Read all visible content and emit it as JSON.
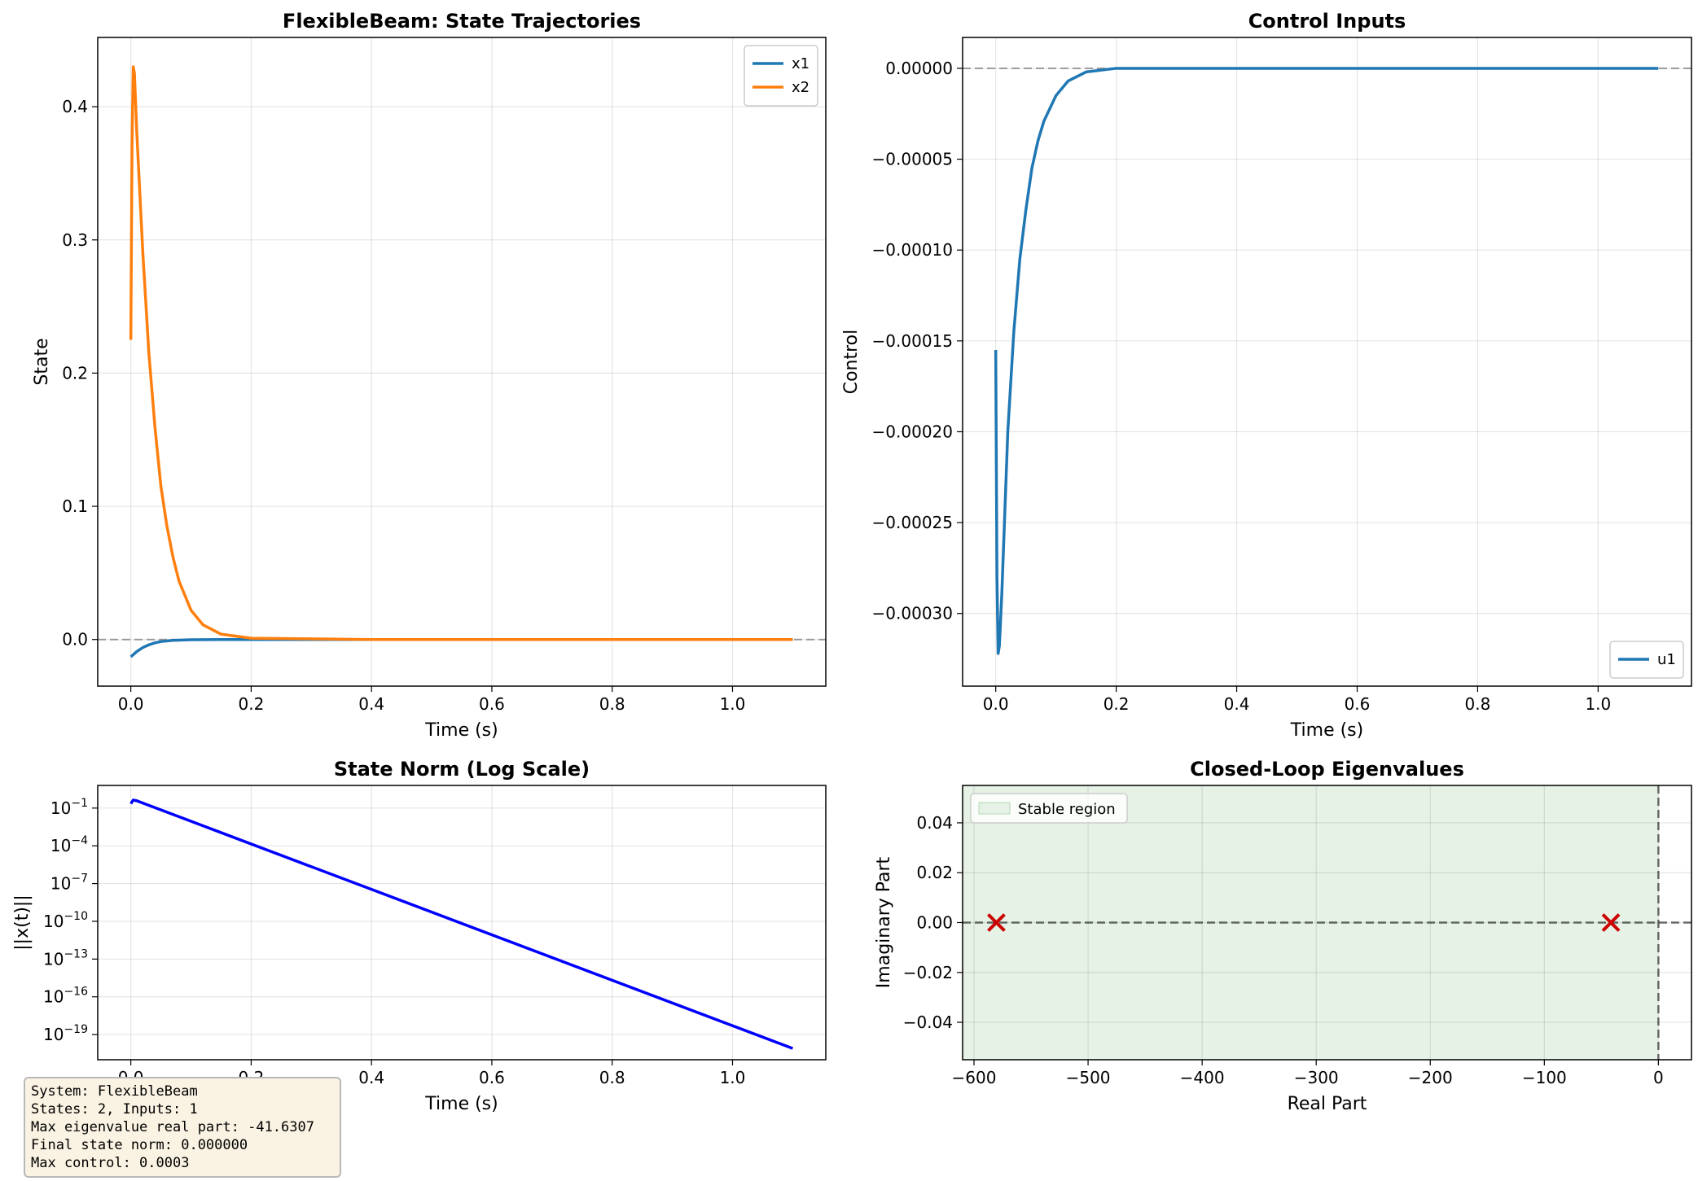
{
  "chart_data": [
    {
      "type": "line",
      "title": "FlexibleBeam: State Trajectories",
      "xlabel": "Time (s)",
      "ylabel": "State",
      "xlim": [
        -0.055,
        1.155
      ],
      "ylim": [
        -0.035,
        0.452
      ],
      "xticks": [
        0.0,
        0.2,
        0.4,
        0.6,
        0.8,
        1.0
      ],
      "xtick_labels": [
        "0.0",
        "0.2",
        "0.4",
        "0.6",
        "0.8",
        "1.0"
      ],
      "yticks": [
        0.0,
        0.1,
        0.2,
        0.3,
        0.4
      ],
      "ytick_labels": [
        "0.0",
        "0.1",
        "0.2",
        "0.3",
        "0.4"
      ],
      "grid": true,
      "legend": "top-right",
      "reference_line_y": 0,
      "series": [
        {
          "name": "x1",
          "color": "#1f77b4",
          "x": [
            0.0,
            0.01,
            0.02,
            0.03,
            0.04,
            0.05,
            0.07,
            0.1,
            0.15,
            0.2,
            0.4,
            0.6,
            0.8,
            1.0,
            1.1
          ],
          "y": [
            -0.013,
            -0.009,
            -0.006,
            -0.004,
            -0.0025,
            -0.0015,
            -0.0006,
            -0.0002,
            0.0,
            0.0,
            0.0,
            0.0,
            0.0,
            0.0,
            0.0
          ]
        },
        {
          "name": "x2",
          "color": "#ff7f0e",
          "x": [
            0.0,
            0.002,
            0.004,
            0.006,
            0.01,
            0.02,
            0.03,
            0.04,
            0.05,
            0.06,
            0.07,
            0.08,
            0.1,
            0.12,
            0.15,
            0.2,
            0.4,
            0.6,
            0.8,
            1.0,
            1.1
          ],
          "y": [
            0.225,
            0.37,
            0.43,
            0.425,
            0.38,
            0.29,
            0.215,
            0.16,
            0.115,
            0.085,
            0.062,
            0.044,
            0.022,
            0.011,
            0.004,
            0.001,
            0.0,
            0.0,
            0.0,
            0.0,
            0.0
          ]
        }
      ]
    },
    {
      "type": "line",
      "title": "Control Inputs",
      "xlabel": "Time (s)",
      "ylabel": "Control",
      "xlim": [
        -0.055,
        1.155
      ],
      "ylim": [
        -0.00034,
        1.7e-05
      ],
      "xticks": [
        0.0,
        0.2,
        0.4,
        0.6,
        0.8,
        1.0
      ],
      "xtick_labels": [
        "0.0",
        "0.2",
        "0.4",
        "0.6",
        "0.8",
        "1.0"
      ],
      "yticks": [
        0.0,
        -5e-05,
        -0.0001,
        -0.00015,
        -0.0002,
        -0.00025,
        -0.0003
      ],
      "ytick_labels": [
        "0.00000",
        "−0.00005",
        "−0.00010",
        "−0.00015",
        "−0.00020",
        "−0.00025",
        "−0.00030"
      ],
      "grid": true,
      "legend": "bottom-right",
      "reference_line_y": 0,
      "series": [
        {
          "name": "u1",
          "color": "#1f77b4",
          "x": [
            0.0,
            0.002,
            0.004,
            0.006,
            0.01,
            0.015,
            0.02,
            0.03,
            0.04,
            0.05,
            0.06,
            0.07,
            0.08,
            0.1,
            0.12,
            0.15,
            0.2,
            0.4,
            0.6,
            0.8,
            1.0,
            1.1
          ],
          "y": [
            -0.000155,
            -0.00028,
            -0.000322,
            -0.000318,
            -0.00029,
            -0.000245,
            -0.0002,
            -0.000145,
            -0.000105,
            -7.8e-05,
            -5.5e-05,
            -4e-05,
            -2.9e-05,
            -1.5e-05,
            -7e-06,
            -2e-06,
            0.0,
            0.0,
            0.0,
            0.0,
            0.0,
            0.0
          ]
        }
      ]
    },
    {
      "type": "line",
      "title": "State Norm (Log Scale)",
      "xlabel": "Time (s)",
      "ylabel": "||x(t)||",
      "log_y": true,
      "xlim": [
        -0.055,
        1.155
      ],
      "ylim_log10": [
        -21,
        0.8
      ],
      "xticks": [
        0.0,
        0.2,
        0.4,
        0.6,
        0.8,
        1.0
      ],
      "xtick_labels": [
        "0.0",
        "0.2",
        "0.4",
        "0.6",
        "0.8",
        "1.0"
      ],
      "ytick_exponents": [
        -1,
        -4,
        -7,
        -10,
        -13,
        -16,
        -19
      ],
      "ytick_base": "10",
      "grid": true,
      "series": [
        {
          "color": "#0000ff",
          "x": [
            0.0,
            0.004,
            0.01,
            1.1
          ],
          "log10_y": [
            -0.65,
            -0.36,
            -0.42,
            -20.1
          ]
        }
      ]
    },
    {
      "type": "scatter",
      "title": "Closed-Loop Eigenvalues",
      "xlabel": "Real Part",
      "ylabel": "Imaginary Part",
      "xlim": [
        -610,
        29
      ],
      "ylim": [
        -0.055,
        0.055
      ],
      "xticks": [
        -600,
        -500,
        -400,
        -300,
        -200,
        -100,
        0
      ],
      "xtick_labels": [
        "−600",
        "−500",
        "−400",
        "−300",
        "−200",
        "−100",
        "0"
      ],
      "yticks": [
        0.04,
        0.02,
        0.0,
        -0.02,
        -0.04
      ],
      "ytick_labels": [
        "0.04",
        "0.02",
        "0.00",
        "−0.02",
        "−0.04"
      ],
      "grid": true,
      "legend": "top-left",
      "stable_region": {
        "label": "Stable region",
        "x_max": 0,
        "color": "#e5f2e5"
      },
      "points": [
        {
          "x": -580.4,
          "y": 0.0,
          "marker": "x",
          "color": "#cc0000"
        },
        {
          "x": -41.6307,
          "y": 0.0,
          "marker": "x",
          "color": "#cc0000"
        }
      ]
    }
  ],
  "info": {
    "lines": [
      "System: FlexibleBeam",
      "States: 2, Inputs: 1",
      "Max eigenvalue real part: -41.6307",
      "Final state norm: 0.000000",
      "Max control: 0.0003"
    ]
  }
}
